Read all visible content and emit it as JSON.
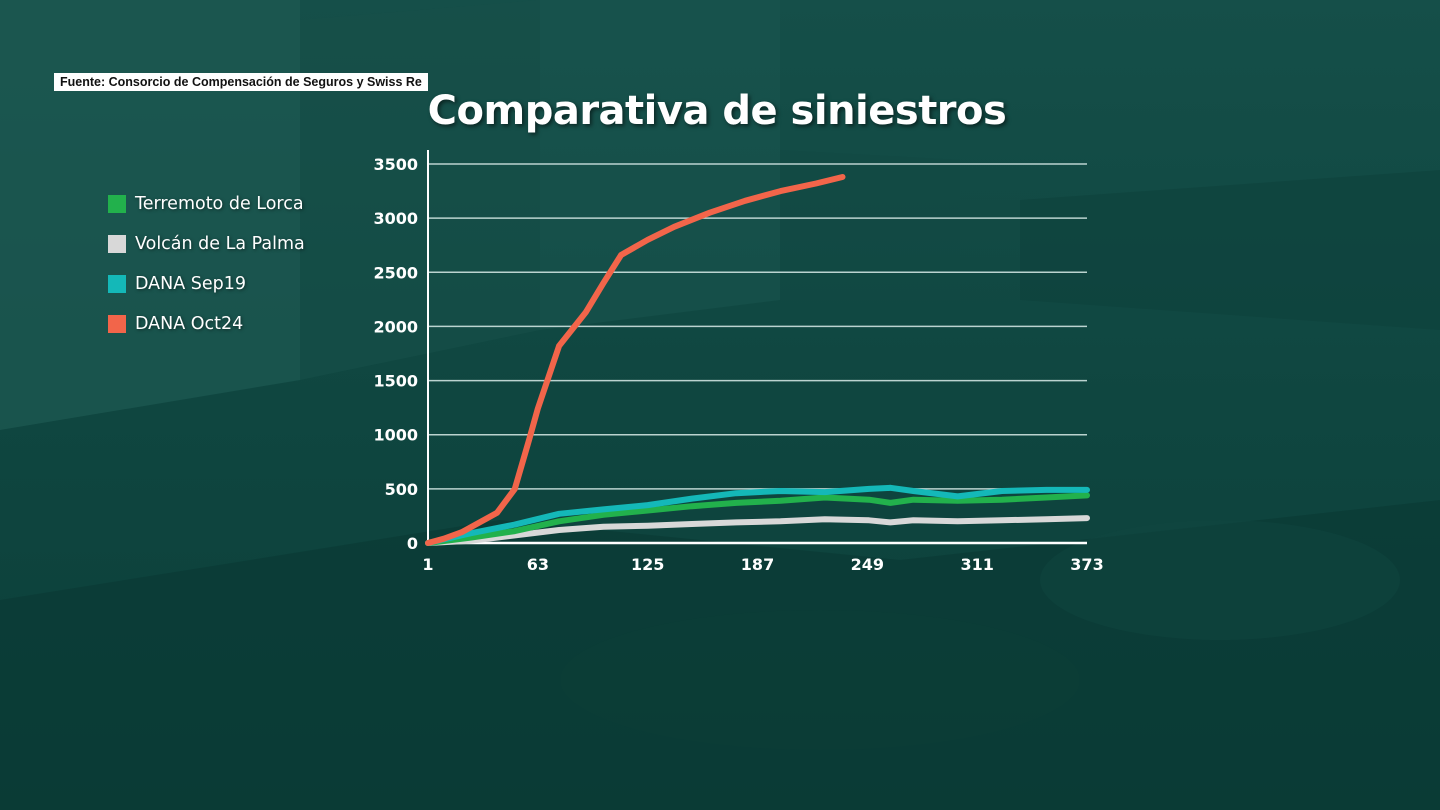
{
  "source_text": "Fuente: Consorcio de Compensación de Seguros y Swiss Re",
  "colors": {
    "background": "#0d4a44",
    "terremoto_lorca": "#22b14c",
    "volcan_la_palma": "#d8d8d8",
    "dana_sep19": "#14b8b8",
    "dana_oct24": "#f2654a",
    "grid": "#d9ece9"
  },
  "legend": {
    "items": [
      {
        "label": "Terremoto de Lorca",
        "color": "#22b14c"
      },
      {
        "label": "Volcán de La Palma",
        "color": "#d8d8d8"
      },
      {
        "label": "DANA Sep19",
        "color": "#14b8b8"
      },
      {
        "label": "DANA Oct24",
        "color": "#f2654a"
      }
    ]
  },
  "chart_data": {
    "type": "line",
    "title": "Comparativa de siniestros",
    "xlabel": "",
    "ylabel": "",
    "xlim": [
      1,
      373
    ],
    "ylim": [
      0,
      3500
    ],
    "yticks": [
      0,
      500,
      1000,
      1500,
      2000,
      2500,
      3000,
      3500
    ],
    "xticks": [
      1,
      63,
      125,
      187,
      249,
      311,
      373
    ],
    "grid": true,
    "legend_position": "left",
    "series": [
      {
        "name": "Terremoto de Lorca",
        "color": "#22b14c",
        "x": [
          1,
          25,
          50,
          75,
          100,
          125,
          150,
          175,
          200,
          225,
          250,
          262,
          275,
          300,
          325,
          350,
          373
        ],
        "y": [
          0,
          50,
          110,
          200,
          260,
          300,
          340,
          370,
          390,
          420,
          400,
          370,
          400,
          390,
          400,
          420,
          440
        ]
      },
      {
        "name": "Volcán de La Palma",
        "color": "#d8d8d8",
        "x": [
          1,
          25,
          50,
          75,
          100,
          125,
          150,
          175,
          200,
          225,
          250,
          262,
          275,
          300,
          325,
          350,
          373
        ],
        "y": [
          0,
          20,
          70,
          120,
          150,
          160,
          175,
          190,
          200,
          220,
          210,
          190,
          210,
          200,
          210,
          220,
          230
        ]
      },
      {
        "name": "DANA Sep19",
        "color": "#14b8b8",
        "x": [
          1,
          25,
          50,
          75,
          100,
          125,
          150,
          175,
          200,
          225,
          250,
          262,
          275,
          300,
          325,
          350,
          373
        ],
        "y": [
          0,
          90,
          170,
          270,
          310,
          350,
          410,
          460,
          480,
          470,
          500,
          510,
          480,
          430,
          480,
          490,
          490
        ]
      },
      {
        "name": "DANA Oct24",
        "color": "#f2654a",
        "x": [
          1,
          10,
          20,
          40,
          50,
          58,
          63,
          75,
          90,
          100,
          110,
          125,
          140,
          160,
          180,
          200,
          220,
          235
        ],
        "y": [
          0,
          40,
          100,
          280,
          500,
          950,
          1240,
          1820,
          2130,
          2400,
          2660,
          2800,
          2920,
          3050,
          3160,
          3250,
          3320,
          3380
        ]
      }
    ]
  }
}
